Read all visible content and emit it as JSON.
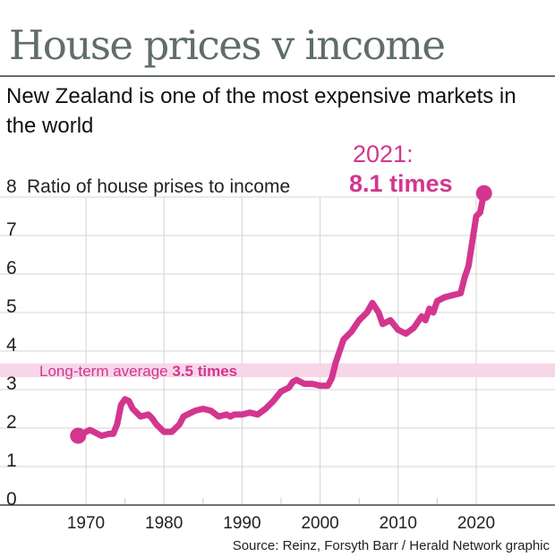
{
  "header": {
    "title": "House prices v income",
    "subtitle": "New Zealand is one of the most expensive markets in the world"
  },
  "colors": {
    "series": "#d3368f",
    "band": "#f7d6e8",
    "title": "#5f6d6b",
    "grid": "#cfcfcf"
  },
  "chart_data": {
    "type": "line",
    "title": "House prices v income",
    "subtitle": "New Zealand is one of the most expensive markets in the world",
    "ylabel": "Ratio of house prises to income",
    "ylim": [
      0,
      8
    ],
    "yticks": [
      "0",
      "1",
      "2",
      "3",
      "4",
      "5",
      "6",
      "7",
      "8"
    ],
    "xlim": [
      1965,
      2030
    ],
    "xticks": [
      "1970",
      "1980",
      "1990",
      "2000",
      "2010",
      "2020"
    ],
    "grid": true,
    "series": [
      {
        "x": [
          1969,
          1970.5,
          1971,
          1972,
          1973,
          1973.5,
          1974,
          1974.5,
          1975,
          1975.5,
          1976,
          1977,
          1978,
          1978.5,
          1979,
          1980,
          1981,
          1982,
          1982.5,
          1983,
          1984,
          1985,
          1986,
          1987,
          1988,
          1988.5,
          1989,
          1990,
          1991,
          1992,
          1993,
          1994,
          1995,
          1996,
          1996.5,
          1997,
          1998,
          1999,
          2000,
          2001,
          2001.5,
          2002,
          2003,
          2004,
          2005,
          2006,
          2006.7,
          2007.5,
          2008,
          2009,
          2010,
          2011,
          2012,
          2013,
          2013.5,
          2014,
          2014.5,
          2015,
          2016,
          2017,
          2018,
          2018.5,
          2019,
          2020,
          2020.5,
          2021
        ],
        "y": [
          1.8,
          1.95,
          1.9,
          1.8,
          1.85,
          1.85,
          2.1,
          2.6,
          2.75,
          2.7,
          2.5,
          2.3,
          2.35,
          2.25,
          2.1,
          1.9,
          1.9,
          2.1,
          2.3,
          2.35,
          2.45,
          2.5,
          2.45,
          2.3,
          2.35,
          2.3,
          2.35,
          2.35,
          2.4,
          2.35,
          2.5,
          2.7,
          2.95,
          3.05,
          3.2,
          3.25,
          3.15,
          3.15,
          3.1,
          3.1,
          3.3,
          3.7,
          4.3,
          4.5,
          4.8,
          5.0,
          5.25,
          5.0,
          4.7,
          4.8,
          4.55,
          4.45,
          4.6,
          4.9,
          4.8,
          5.1,
          5.0,
          5.3,
          5.4,
          5.45,
          5.5,
          5.9,
          6.2,
          7.5,
          7.6,
          8.1
        ]
      }
    ],
    "reference_band": {
      "value": 3.5,
      "label": "Long-term average",
      "value_label": "3.5 times"
    },
    "annotations": [
      {
        "year_label": "2021:",
        "value_label": "8.1 times"
      }
    ],
    "source": "Source: Reinz, Forsyth Barr / Herald Network graphic"
  }
}
